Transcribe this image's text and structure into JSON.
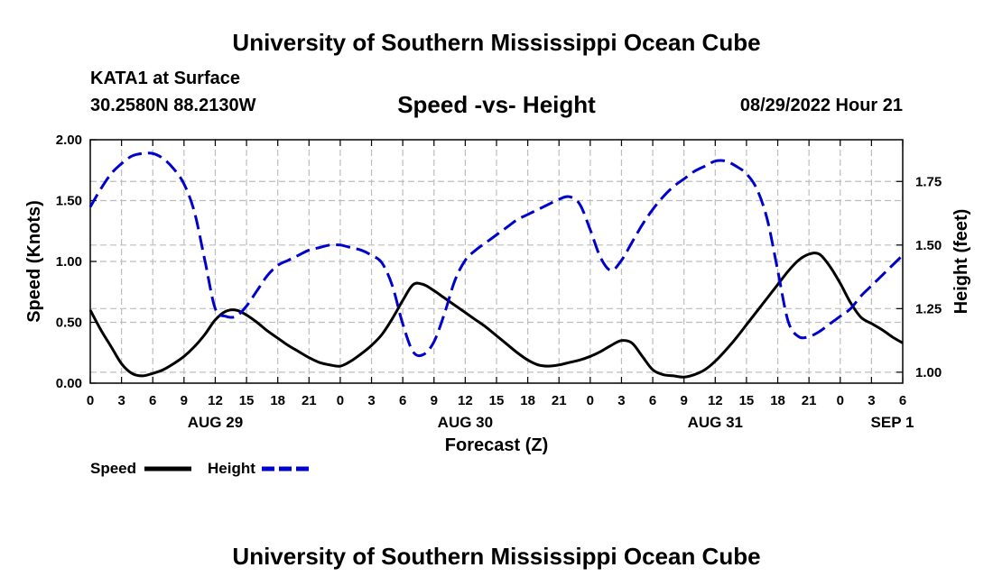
{
  "header": {
    "title": "University of Southern Mississippi Ocean Cube",
    "station": "KATA1 at Surface",
    "coords": "30.2580N  88.2130W",
    "datetime": "08/29/2022 Hour 21"
  },
  "footer": {
    "title": "University of Southern Mississippi Ocean Cube"
  },
  "chart_data": {
    "type": "line",
    "title": "Speed -vs- Height",
    "xlabel": "Forecast (Z)",
    "ylabel_left": "Speed (Knots)",
    "ylabel_right": "Height (feet)",
    "ylim_left": [
      0,
      2
    ],
    "ylim_right": [
      0.957,
      1.914
    ],
    "xlim": [
      0,
      78
    ],
    "x_ticks": [
      0,
      3,
      6,
      9,
      12,
      15,
      18,
      21,
      24,
      27,
      30,
      33,
      36,
      39,
      42,
      45,
      48,
      51,
      54,
      57,
      60,
      63,
      66,
      69,
      72,
      75,
      78
    ],
    "x_tick_labels": [
      "0",
      "3",
      "6",
      "9",
      "12",
      "15",
      "18",
      "21",
      "0",
      "3",
      "6",
      "9",
      "12",
      "15",
      "18",
      "21",
      "0",
      "3",
      "6",
      "9",
      "12",
      "15",
      "18",
      "21",
      "0",
      "3",
      "6"
    ],
    "date_labels": [
      {
        "x": 12,
        "label": "AUG 29"
      },
      {
        "x": 36,
        "label": "AUG 30"
      },
      {
        "x": 60,
        "label": "AUG 31"
      },
      {
        "x": 77,
        "label": "SEP 1"
      }
    ],
    "y_ticks_left": [
      "0.00",
      "0.50",
      "1.00",
      "1.50",
      "2.00"
    ],
    "y_ticks_left_values": [
      0,
      0.5,
      1.0,
      1.5,
      2.0
    ],
    "y_ticks_right": [
      "1.00",
      "1.25",
      "1.50",
      "1.75"
    ],
    "y_ticks_right_values": [
      1.0,
      1.25,
      1.5,
      1.75
    ],
    "series": [
      {
        "name": "Speed",
        "axis": "left",
        "color": "#000000",
        "dash": "solid",
        "x": [
          0,
          1,
          2,
          3,
          4,
          5,
          6,
          7,
          8,
          9,
          10,
          11,
          12,
          13,
          14,
          15,
          16,
          17,
          18,
          19,
          20,
          21,
          22,
          23,
          24,
          25,
          26,
          27,
          28,
          29,
          30,
          31,
          32,
          33,
          34,
          35,
          36,
          37,
          38,
          39,
          40,
          41,
          42,
          43,
          44,
          45,
          46,
          47,
          48,
          49,
          50,
          51,
          52,
          53,
          54,
          55,
          56,
          57,
          58,
          59,
          60,
          61,
          62,
          63,
          64,
          65,
          66,
          67,
          68,
          69,
          70,
          71,
          72,
          73,
          74,
          75,
          76,
          77,
          78
        ],
        "values": [
          0.6,
          0.44,
          0.3,
          0.16,
          0.08,
          0.06,
          0.08,
          0.11,
          0.16,
          0.22,
          0.3,
          0.4,
          0.52,
          0.59,
          0.6,
          0.56,
          0.5,
          0.43,
          0.37,
          0.31,
          0.26,
          0.21,
          0.17,
          0.15,
          0.14,
          0.18,
          0.24,
          0.31,
          0.4,
          0.53,
          0.68,
          0.81,
          0.81,
          0.76,
          0.7,
          0.64,
          0.58,
          0.52,
          0.46,
          0.39,
          0.32,
          0.25,
          0.19,
          0.15,
          0.14,
          0.15,
          0.17,
          0.19,
          0.22,
          0.26,
          0.31,
          0.35,
          0.33,
          0.22,
          0.11,
          0.07,
          0.06,
          0.05,
          0.07,
          0.11,
          0.18,
          0.27,
          0.37,
          0.48,
          0.59,
          0.7,
          0.81,
          0.92,
          1.01,
          1.06,
          1.06,
          0.96,
          0.82,
          0.66,
          0.54,
          0.49,
          0.44,
          0.38,
          0.33
        ]
      },
      {
        "name": "Height",
        "axis": "right",
        "color": "#0000cc",
        "dash": "dashed",
        "x": [
          0,
          1,
          2,
          3,
          4,
          5,
          6,
          7,
          8,
          9,
          10,
          11,
          12,
          13,
          14,
          15,
          16,
          17,
          18,
          19,
          20,
          21,
          22,
          23,
          24,
          25,
          26,
          27,
          28,
          29,
          30,
          31,
          32,
          33,
          34,
          35,
          36,
          37,
          38,
          39,
          40,
          41,
          42,
          43,
          44,
          45,
          46,
          47,
          48,
          49,
          50,
          51,
          52,
          53,
          54,
          55,
          56,
          57,
          58,
          59,
          60,
          61,
          62,
          63,
          64,
          65,
          66,
          67,
          68,
          69,
          70,
          71,
          72,
          73,
          74,
          75,
          76,
          77,
          78
        ],
        "values": [
          1.65,
          1.72,
          1.78,
          1.82,
          1.85,
          1.86,
          1.86,
          1.84,
          1.8,
          1.74,
          1.63,
          1.44,
          1.25,
          1.22,
          1.22,
          1.26,
          1.32,
          1.38,
          1.42,
          1.44,
          1.46,
          1.48,
          1.49,
          1.5,
          1.5,
          1.49,
          1.48,
          1.46,
          1.43,
          1.34,
          1.19,
          1.08,
          1.07,
          1.12,
          1.23,
          1.36,
          1.44,
          1.48,
          1.51,
          1.54,
          1.57,
          1.6,
          1.62,
          1.64,
          1.66,
          1.68,
          1.69,
          1.66,
          1.56,
          1.45,
          1.4,
          1.44,
          1.51,
          1.58,
          1.64,
          1.69,
          1.73,
          1.76,
          1.79,
          1.81,
          1.83,
          1.83,
          1.81,
          1.78,
          1.72,
          1.6,
          1.4,
          1.2,
          1.14,
          1.14,
          1.16,
          1.19,
          1.22,
          1.25,
          1.3,
          1.34,
          1.38,
          1.42,
          1.46
        ]
      }
    ],
    "legend": [
      {
        "label": "Speed",
        "color": "#000000",
        "dash": "solid"
      },
      {
        "label": "Height",
        "color": "#0000cc",
        "dash": "dashed"
      }
    ],
    "grid": true,
    "legend_position": "bottom-left"
  }
}
